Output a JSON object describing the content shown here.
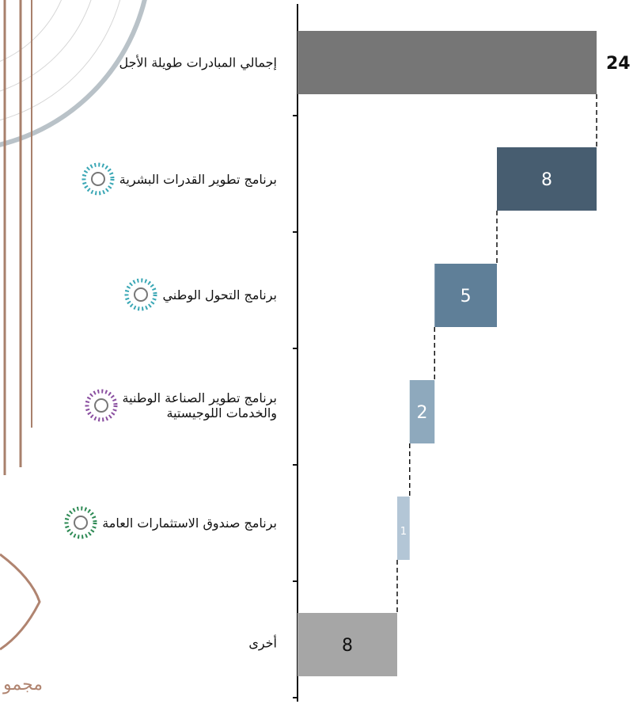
{
  "chart_data": {
    "type": "waterfall",
    "categories": [
      "إجمالي المبادرات طويلة الأجل",
      "برنامج تطوير القدرات البشرية",
      "برنامج التحول الوطني",
      "برنامج تطوير الصناعة الوطنية\nوالخدمات اللوجيستية",
      "برنامج صندوق الاستثمارات العامة",
      "أخرى"
    ],
    "values": [
      24,
      8,
      5,
      2,
      1,
      8
    ],
    "colors": [
      "#767676",
      "#475d70",
      "#5f7f98",
      "#8ea9bd",
      "#b3c6d6",
      "#a6a6a6"
    ]
  },
  "logo_text": "مجمو"
}
